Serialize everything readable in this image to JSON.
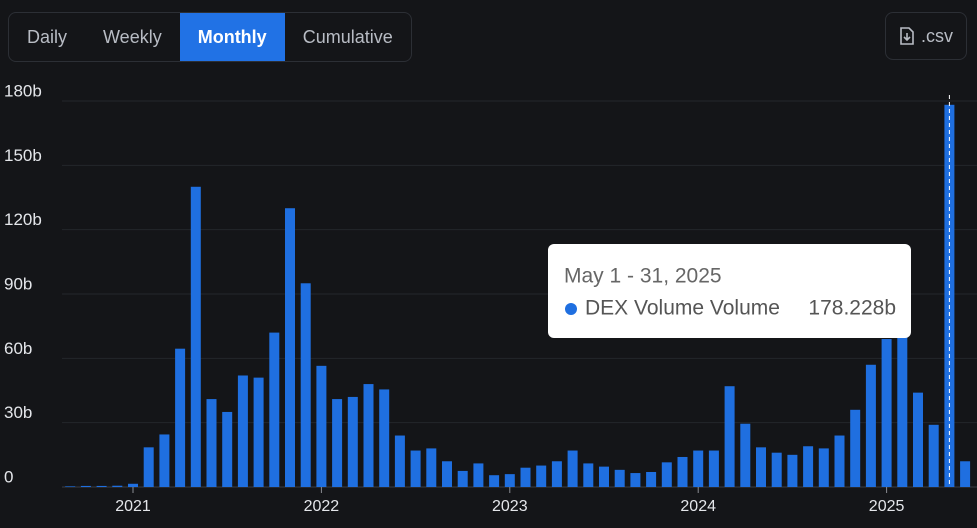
{
  "controls": {
    "tabs": [
      "Daily",
      "Weekly",
      "Monthly",
      "Cumulative"
    ],
    "active_tab": 2,
    "download": ".csv"
  },
  "chart_data": {
    "type": "bar",
    "categories": [
      null,
      null,
      null,
      null,
      "2021",
      null,
      null,
      null,
      null,
      null,
      null,
      null,
      null,
      null,
      null,
      null,
      "2022",
      null,
      null,
      null,
      null,
      null,
      null,
      null,
      null,
      null,
      null,
      null,
      "2023",
      null,
      null,
      null,
      null,
      null,
      null,
      null,
      null,
      null,
      null,
      null,
      "2024",
      null,
      null,
      null,
      null,
      null,
      null,
      null,
      null,
      null,
      null,
      null,
      "2025",
      null,
      null,
      null,
      null,
      null
    ],
    "series": [
      {
        "name": "DEX Volume Volume",
        "color": "#1f6fe0",
        "values": [
          0.3,
          0.5,
          0.5,
          0.6,
          1.5,
          18.5,
          24.5,
          64.5,
          140,
          41,
          35,
          52,
          51,
          72,
          130,
          95,
          56.5,
          41,
          42,
          48,
          45.5,
          24,
          17,
          18,
          12,
          7.5,
          11,
          5.5,
          6,
          9,
          10,
          12,
          17,
          11,
          9.5,
          8,
          6.5,
          7,
          11.5,
          14,
          17,
          17,
          47,
          29.5,
          18.5,
          16,
          15,
          19,
          18,
          24,
          36,
          57,
          69,
          70,
          44,
          29,
          178.228,
          12
        ]
      }
    ],
    "ylim": [
      0,
      180
    ],
    "yticks": [
      0,
      {
        "value": 30,
        "label": "30b"
      },
      {
        "value": 60,
        "label": "60b"
      },
      {
        "value": 90,
        "label": "90b"
      },
      {
        "value": 120,
        "label": "120b"
      },
      {
        "value": 150,
        "label": "150b"
      },
      {
        "value": 180,
        "label": "180b"
      }
    ],
    "grid": true,
    "tooltip": {
      "index": 56,
      "title": "May 1 - 31, 2025",
      "value_label": "178.228b"
    }
  }
}
